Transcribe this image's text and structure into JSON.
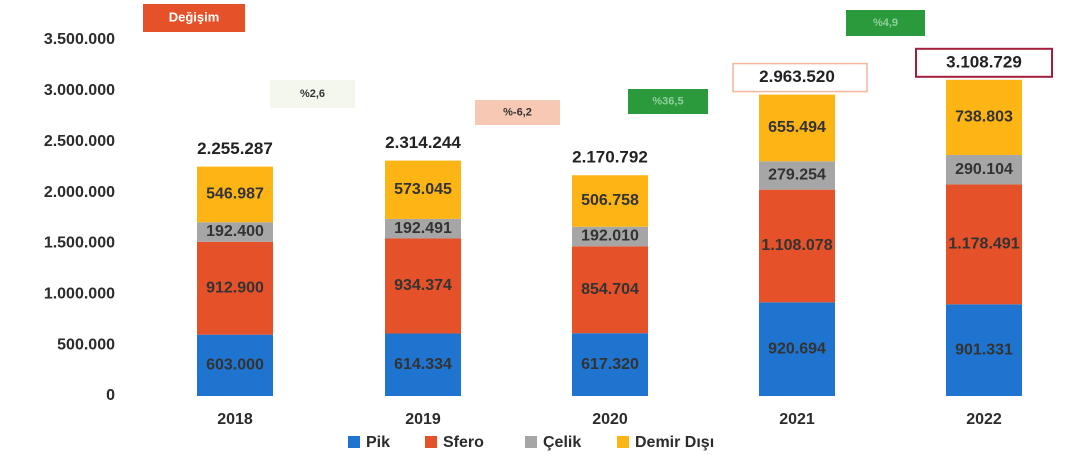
{
  "chart_data": {
    "type": "stacked_bar",
    "categories": [
      "2018",
      "2019",
      "2020",
      "2021",
      "2022"
    ],
    "series": [
      {
        "name": "Pik",
        "color": "#1f74cf",
        "values": [
          603000,
          614334,
          617320,
          920694,
          901331
        ],
        "value_labels": [
          "603.000",
          "614.334",
          "617.320",
          "920.694",
          "901.331"
        ]
      },
      {
        "name": "Sfero",
        "color": "#e5522a",
        "values": [
          912900,
          934374,
          854704,
          1108078,
          1178491
        ],
        "value_labels": [
          "912.900",
          "934.374",
          "854.704",
          "1.108.078",
          "1.178.491"
        ]
      },
      {
        "name": "Çelik",
        "color": "#a6a6a6",
        "values": [
          192400,
          192491,
          192010,
          279254,
          290104
        ],
        "value_labels": [
          "192.400",
          "192.491",
          "192.010",
          "279.254",
          "290.104"
        ]
      },
      {
        "name": "Demir Dışı",
        "color": "#fdb515",
        "values": [
          546987,
          573045,
          506758,
          655494,
          738803
        ],
        "value_labels": [
          "546.987",
          "573.045",
          "506.758",
          "655.494",
          "738.803"
        ]
      }
    ],
    "totals": {
      "values": [
        2255287,
        2314244,
        2170792,
        2963520,
        3108729
      ],
      "value_labels": [
        "2.255.287",
        "2.314.244",
        "2.170.792",
        "2.963.520",
        "3.108.729"
      ]
    },
    "change_title": "Değişim",
    "changes": [
      {
        "label": "%2,6",
        "color": "#f4f7ec"
      },
      {
        "label": "%-6,2",
        "color": "#f7c9b4"
      },
      {
        "label": "%36,5",
        "color": "#2a9a3c"
      },
      {
        "label": "%4,9",
        "color": "#2a9a3c"
      }
    ],
    "ylim": [
      0,
      3500000
    ],
    "yticks": [
      0,
      {
        "value": 500000,
        "label": "500.000"
      },
      {
        "value": 1000000,
        "label": "1.000.000"
      },
      {
        "value": 1500000,
        "label": "1.500.000"
      },
      {
        "value": 2000000,
        "label": "2.000.000"
      },
      {
        "value": 2500000,
        "label": "2.500.000"
      },
      {
        "value": 3000000,
        "label": "3.000.000"
      },
      {
        "value": 3500000,
        "label": "3.500.000"
      }
    ]
  }
}
